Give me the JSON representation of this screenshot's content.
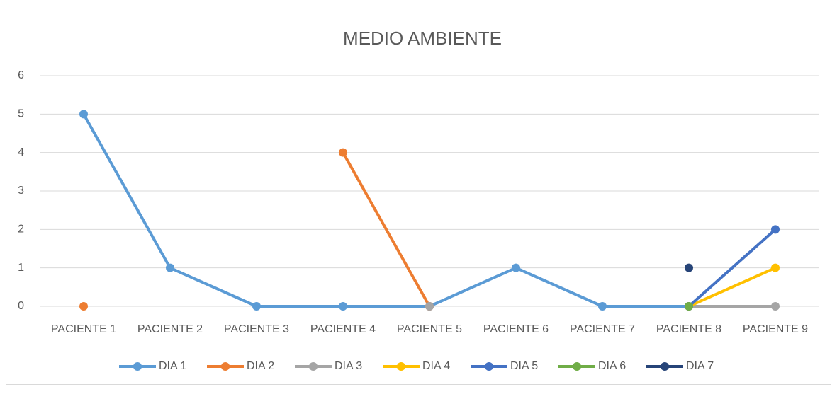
{
  "chart_data": {
    "type": "line",
    "title": "MEDIO AMBIENTE",
    "categories": [
      "PACIENTE 1",
      "PACIENTE 2",
      "PACIENTE 3",
      "PACIENTE 4",
      "PACIENTE 5",
      "PACIENTE 6",
      "PACIENTE 7",
      "PACIENTE 8",
      "PACIENTE 9"
    ],
    "series": [
      {
        "name": "DIA 1",
        "color": "#5b9bd5",
        "values": [
          5,
          1,
          0,
          0,
          0,
          1,
          0,
          0,
          null
        ]
      },
      {
        "name": "DIA 2",
        "color": "#ed7d31",
        "values": [
          0,
          null,
          null,
          4,
          0,
          null,
          null,
          null,
          null
        ]
      },
      {
        "name": "DIA 3",
        "color": "#a5a5a5",
        "values": [
          null,
          null,
          null,
          null,
          0,
          null,
          null,
          0,
          0
        ]
      },
      {
        "name": "DIA 4",
        "color": "#ffc000",
        "values": [
          null,
          null,
          null,
          null,
          null,
          null,
          null,
          0,
          1
        ]
      },
      {
        "name": "DIA 5",
        "color": "#4472c4",
        "values": [
          null,
          null,
          null,
          null,
          null,
          null,
          null,
          0,
          2
        ]
      },
      {
        "name": "DIA 6",
        "color": "#70ad47",
        "values": [
          null,
          null,
          null,
          null,
          null,
          null,
          null,
          0,
          null
        ]
      },
      {
        "name": "DIA 7",
        "color": "#264478",
        "values": [
          null,
          null,
          null,
          null,
          null,
          null,
          null,
          1,
          null
        ]
      }
    ],
    "ylim": [
      0,
      6
    ],
    "yticks": [
      0,
      1,
      2,
      3,
      4,
      5,
      6
    ],
    "grid": true,
    "legend": "bottom"
  }
}
